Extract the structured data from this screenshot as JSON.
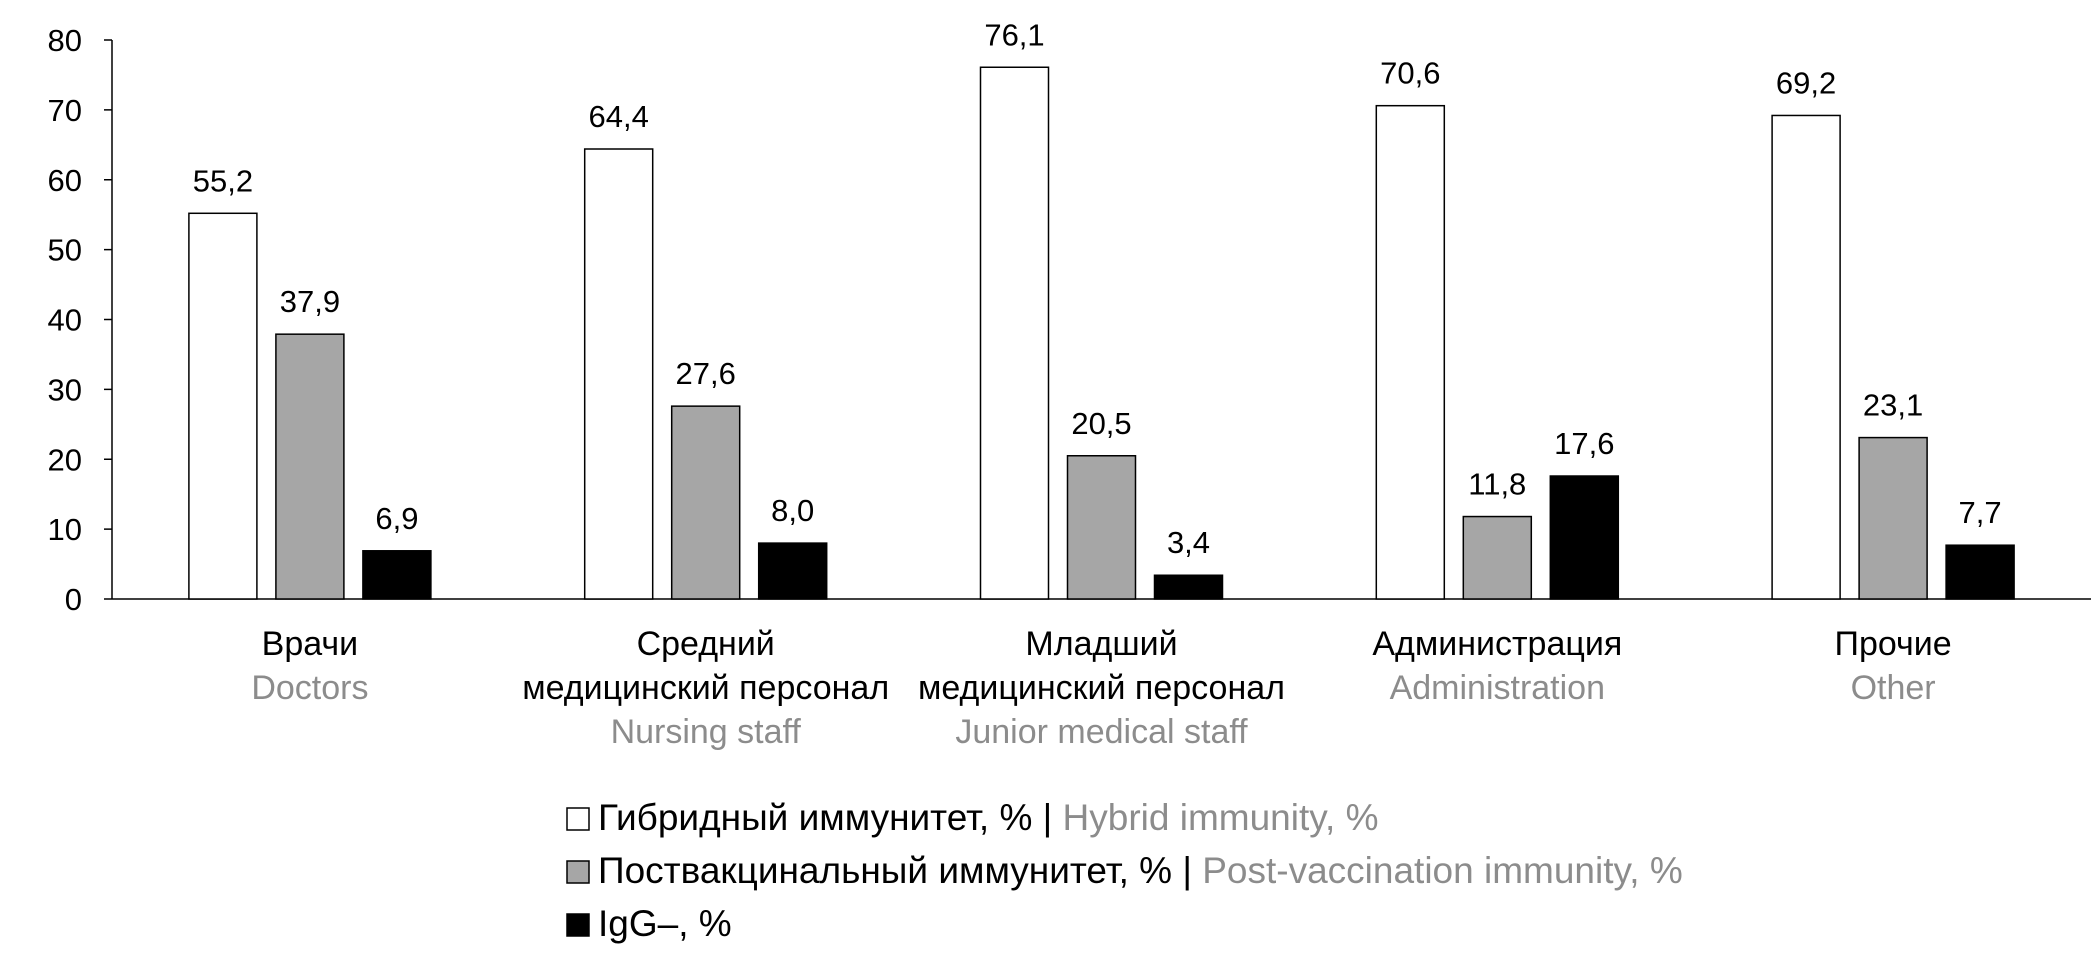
{
  "chart_data": {
    "type": "bar",
    "ylim": [
      0,
      80
    ],
    "yticks": [
      "0",
      "10",
      "20",
      "30",
      "40",
      "50",
      "60",
      "70",
      "80"
    ],
    "grid": false,
    "legend_position": "bottom",
    "categories": [
      {
        "ru": [
          "Врачи"
        ],
        "en": "Doctors"
      },
      {
        "ru": [
          "Средний",
          "медицинский персонал"
        ],
        "en": "Nursing staff"
      },
      {
        "ru": [
          "Младший",
          "медицинский персонал"
        ],
        "en": "Junior medical staff"
      },
      {
        "ru": [
          "Администрация"
        ],
        "en": "Administration"
      },
      {
        "ru": [
          "Прочие"
        ],
        "en": "Other"
      }
    ],
    "series": [
      {
        "name": "Гибридный иммунитет, %",
        "name_en": "Hybrid immunity, %",
        "color": "#ffffff",
        "values": [
          55.2,
          64.4,
          76.1,
          70.6,
          69.2
        ],
        "labels": [
          "55,2",
          "64,4",
          "76,1",
          "70,6",
          "69,2"
        ]
      },
      {
        "name": "Поствакцинальный иммунитет, %",
        "name_en": "Post-vaccination immunity, %",
        "color": "#a6a6a6",
        "values": [
          37.9,
          27.6,
          20.5,
          11.8,
          23.1
        ],
        "labels": [
          "37,9",
          "27,6",
          "20,5",
          "11,8",
          "23,1"
        ]
      },
      {
        "name": "IgG–, %",
        "name_en": "",
        "color": "#000000",
        "values": [
          6.9,
          8.0,
          3.4,
          17.6,
          7.7
        ],
        "labels": [
          "6,9",
          "8,0",
          "3,4",
          "17,6",
          "7,7"
        ]
      }
    ]
  }
}
